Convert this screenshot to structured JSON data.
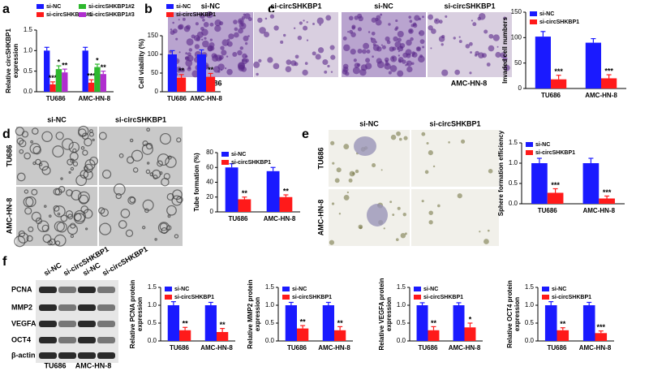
{
  "panel_labels": [
    "a",
    "b",
    "c",
    "d",
    "e",
    "f"
  ],
  "images": {
    "c": {
      "columns": [
        "si-NC",
        "si-circSHKBP1",
        "si-NC",
        "si-circSHKBP1"
      ],
      "groups": [
        "TU686",
        "AMC-HN-8"
      ]
    },
    "d": {
      "columns": [
        "si-NC",
        "si-circSHKBP1"
      ],
      "rows": [
        "TU686",
        "AMC-HN-8"
      ]
    },
    "e": {
      "columns": [
        "si-NC",
        "si-circSHKBP1"
      ],
      "rows": [
        "TU686",
        "AMC-HN-8"
      ]
    },
    "f": {
      "lanes": [
        "si-NC",
        "si-circSHKBP1",
        "si-NC",
        "si-circSHKBP1"
      ],
      "proteins": [
        "PCNA",
        "MMP2",
        "VEGFA",
        "OCT4",
        "β-actin"
      ],
      "groups": [
        "TU686",
        "AMC-HN-8"
      ]
    }
  },
  "chart_data": [
    {
      "type": "bar",
      "ylabel": [
        "Relative circSHKBP1",
        "expression"
      ],
      "categories": [
        "TU686",
        "AMC-HN-8"
      ],
      "series": [
        {
          "name": "si-NC",
          "color": "#1a1aff",
          "values": [
            1.0,
            1.0
          ],
          "errors": [
            0.08,
            0.08
          ],
          "significance": [
            null,
            null
          ]
        },
        {
          "name": "si-circSHKBP1#1",
          "color": "#ff1a1a",
          "values": [
            0.18,
            0.22
          ],
          "errors": [
            0.06,
            0.07
          ],
          "significance": [
            "***",
            "***"
          ]
        },
        {
          "name": "si-circSHKBP1#2",
          "color": "#2db82d",
          "values": [
            0.55,
            0.6
          ],
          "errors": [
            0.08,
            0.07
          ],
          "significance": [
            "*",
            "*"
          ]
        },
        {
          "name": "si-circSHKBP1#3",
          "color": "#b02ecf",
          "values": [
            0.47,
            0.43
          ],
          "errors": [
            0.08,
            0.07
          ],
          "significance": [
            "**",
            "**"
          ]
        }
      ],
      "ylim": [
        0,
        1.5
      ],
      "yticks": [
        {
          "value": 0,
          "label": "0.0"
        },
        {
          "value": 0.5,
          "label": "0.5"
        },
        {
          "value": 1,
          "label": "1.0"
        },
        {
          "value": 1.5,
          "label": "1.5"
        }
      ],
      "legend": "top"
    },
    {
      "type": "bar",
      "ylabel": [
        "Cell viability (%)"
      ],
      "categories": [
        "TU686",
        "AMC-HN-8"
      ],
      "series": [
        {
          "name": "si-NC",
          "color": "#1a1aff",
          "values": [
            100,
            100
          ],
          "errors": [
            10,
            12
          ],
          "significance": [
            null,
            null
          ]
        },
        {
          "name": "si-circSHKBP1",
          "color": "#ff1a1a",
          "values": [
            38,
            40
          ],
          "errors": [
            8,
            9
          ],
          "significance": [
            "**",
            "**"
          ]
        }
      ],
      "ylim": [
        0,
        150
      ],
      "yticks": [
        0,
        50,
        100,
        150
      ],
      "legend": "top"
    },
    {
      "type": "bar",
      "ylabel": [
        "Invaded cell numbers"
      ],
      "categories": [
        "TU686",
        "AMC-HN-8"
      ],
      "series": [
        {
          "name": "si-NC",
          "color": "#1a1aff",
          "values": [
            102,
            90
          ],
          "errors": [
            10,
            8
          ],
          "significance": [
            null,
            null
          ]
        },
        {
          "name": "si-circSHKBP1",
          "color": "#ff1a1a",
          "values": [
            18,
            20
          ],
          "errors": [
            8,
            7
          ],
          "significance": [
            "***",
            "***"
          ]
        }
      ],
      "ylim": [
        0,
        150
      ],
      "yticks": [
        0,
        50,
        100,
        150
      ],
      "legend": "top-left"
    },
    {
      "type": "bar",
      "ylabel": [
        "Tube formation (%)"
      ],
      "categories": [
        "TU686",
        "AMC-HN-8"
      ],
      "series": [
        {
          "name": "si-NC",
          "color": "#1a1aff",
          "values": [
            60,
            55
          ],
          "errors": [
            5,
            5
          ],
          "significance": [
            null,
            null
          ]
        },
        {
          "name": "si-circSHKBP1",
          "color": "#ff1a1a",
          "values": [
            17,
            20
          ],
          "errors": [
            3,
            3
          ],
          "significance": [
            "**",
            "**"
          ]
        }
      ],
      "ylim": [
        0,
        80
      ],
      "yticks": [
        0,
        20,
        40,
        60,
        80
      ],
      "legend": "top-left"
    },
    {
      "type": "bar",
      "ylabel": [
        "Sphere formation efficiency"
      ],
      "categories": [
        "TU686",
        "AMC-HN-8"
      ],
      "series": [
        {
          "name": "si-NC",
          "color": "#1a1aff",
          "values": [
            1.0,
            1.0
          ],
          "errors": [
            0.12,
            0.12
          ],
          "significance": [
            null,
            null
          ]
        },
        {
          "name": "si-circSHKBP1",
          "color": "#ff1a1a",
          "values": [
            0.27,
            0.13
          ],
          "errors": [
            0.1,
            0.06
          ],
          "significance": [
            "***",
            "***"
          ]
        }
      ],
      "ylim": [
        0,
        1.5
      ],
      "yticks": [
        {
          "value": 0,
          "label": "0.0"
        },
        {
          "value": 0.5,
          "label": "0.5"
        },
        {
          "value": 1,
          "label": "1.0"
        },
        {
          "value": 1.5,
          "label": "1.5"
        }
      ],
      "legend": "top-left"
    },
    {
      "type": "bar",
      "ylabel": [
        "Relative PCNA protein",
        "expression"
      ],
      "categories": [
        "TU686",
        "AMC-HN-8"
      ],
      "series": [
        {
          "name": "si-NC",
          "color": "#1a1aff",
          "values": [
            1.0,
            1.0
          ],
          "errors": [
            0.1,
            0.08
          ],
          "significance": [
            null,
            null
          ]
        },
        {
          "name": "si-circSHKBP1",
          "color": "#ff1a1a",
          "values": [
            0.3,
            0.25
          ],
          "errors": [
            0.08,
            0.1
          ],
          "significance": [
            "**",
            "**"
          ]
        }
      ],
      "ylim": [
        0,
        1.5
      ],
      "yticks": [
        {
          "value": 0,
          "label": "0.0"
        },
        {
          "value": 0.5,
          "label": "0.5"
        },
        {
          "value": 1,
          "label": "1.0"
        },
        {
          "value": 1.5,
          "label": "1.5"
        }
      ],
      "legend": "top-left"
    },
    {
      "type": "bar",
      "ylabel": [
        "Relative MMP2 protein",
        "expression"
      ],
      "categories": [
        "TU686",
        "AMC-HN-8"
      ],
      "series": [
        {
          "name": "si-NC",
          "color": "#1a1aff",
          "values": [
            1.0,
            1.0
          ],
          "errors": [
            0.08,
            0.08
          ],
          "significance": [
            null,
            null
          ]
        },
        {
          "name": "si-circSHKBP1",
          "color": "#ff1a1a",
          "values": [
            0.35,
            0.3
          ],
          "errors": [
            0.08,
            0.1
          ],
          "significance": [
            "**",
            "**"
          ]
        }
      ],
      "ylim": [
        0,
        1.5
      ],
      "yticks": [
        {
          "value": 0,
          "label": "0.0"
        },
        {
          "value": 0.5,
          "label": "0.5"
        },
        {
          "value": 1,
          "label": "1.0"
        },
        {
          "value": 1.5,
          "label": "1.5"
        }
      ],
      "legend": "top-left"
    },
    {
      "type": "bar",
      "ylabel": [
        "Relative VEGFA protein",
        "expression"
      ],
      "categories": [
        "TU686",
        "AMC-HN-8"
      ],
      "series": [
        {
          "name": "si-NC",
          "color": "#1a1aff",
          "values": [
            1.0,
            1.0
          ],
          "errors": [
            0.07,
            0.07
          ],
          "significance": [
            null,
            null
          ]
        },
        {
          "name": "si-circSHKBP1",
          "color": "#ff1a1a",
          "values": [
            0.3,
            0.38
          ],
          "errors": [
            0.1,
            0.12
          ],
          "significance": [
            "**",
            "*"
          ]
        }
      ],
      "ylim": [
        0,
        1.5
      ],
      "yticks": [
        {
          "value": 0,
          "label": "0.0"
        },
        {
          "value": 0.5,
          "label": "0.5"
        },
        {
          "value": 1,
          "label": "1.0"
        },
        {
          "value": 1.5,
          "label": "1.5"
        }
      ],
      "legend": "top-left"
    },
    {
      "type": "bar",
      "ylabel": [
        "Relative OCT4 protein",
        "expression"
      ],
      "categories": [
        "TU686",
        "AMC-HN-8"
      ],
      "series": [
        {
          "name": "si-NC",
          "color": "#1a1aff",
          "values": [
            1.0,
            1.0
          ],
          "errors": [
            0.1,
            0.08
          ],
          "significance": [
            null,
            null
          ]
        },
        {
          "name": "si-circSHKBP1",
          "color": "#ff1a1a",
          "values": [
            0.3,
            0.22
          ],
          "errors": [
            0.07,
            0.06
          ],
          "significance": [
            "**",
            "***"
          ]
        }
      ],
      "ylim": [
        0,
        1.5
      ],
      "yticks": [
        {
          "value": 0,
          "label": "0.0"
        },
        {
          "value": 0.5,
          "label": "0.5"
        },
        {
          "value": 1,
          "label": "1.0"
        },
        {
          "value": 1.5,
          "label": "1.5"
        }
      ],
      "legend": "top-left"
    }
  ]
}
